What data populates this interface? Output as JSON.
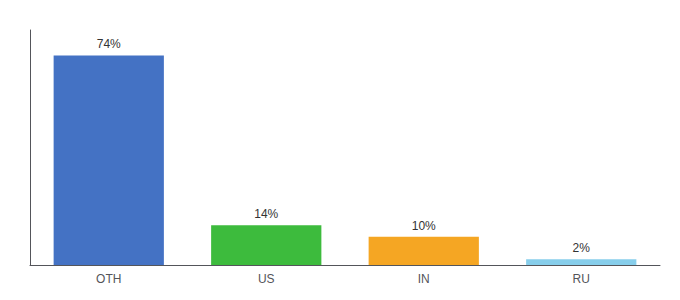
{
  "chart_data": {
    "type": "bar",
    "categories": [
      "OTH",
      "US",
      "IN",
      "RU"
    ],
    "values": [
      74,
      14,
      10,
      2
    ],
    "value_labels": [
      "74%",
      "14%",
      "10%",
      "2%"
    ],
    "colors": [
      "#4472C4",
      "#3DBB3D",
      "#F5A623",
      "#87CEEB"
    ],
    "ylim": [
      0,
      83
    ],
    "grid": false,
    "data_labels": true,
    "tick_labels": "x"
  }
}
